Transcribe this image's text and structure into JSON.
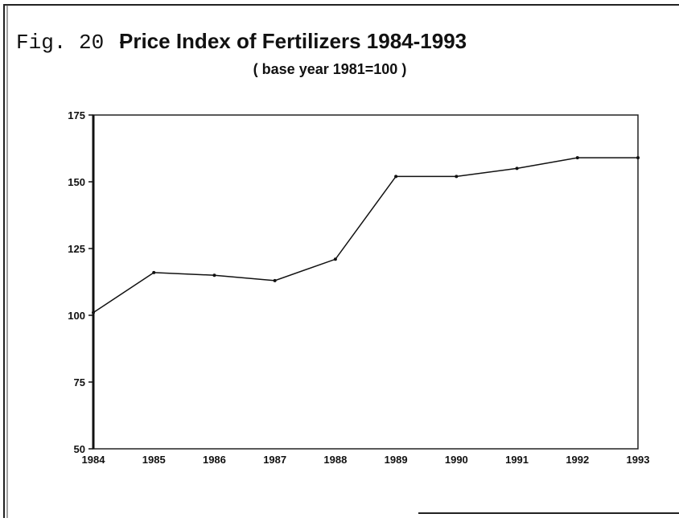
{
  "chart_data": {
    "type": "line",
    "title_prefix": "Fig. 20 -",
    "title": "Price Index of Fertilizers 1984-1993",
    "subtitle": "( base year 1981=100 )",
    "categories": [
      "1984",
      "1985",
      "1986",
      "1987",
      "1988",
      "1989",
      "1990",
      "1991",
      "1992",
      "1993"
    ],
    "series": [
      {
        "color": "#111111",
        "values": [
          101,
          116,
          115,
          113,
          121,
          152,
          152,
          155,
          159,
          159
        ]
      }
    ],
    "ylim": [
      50,
      175
    ],
    "yticks": [
      50,
      75,
      100,
      125,
      150,
      175
    ],
    "grid": false
  }
}
